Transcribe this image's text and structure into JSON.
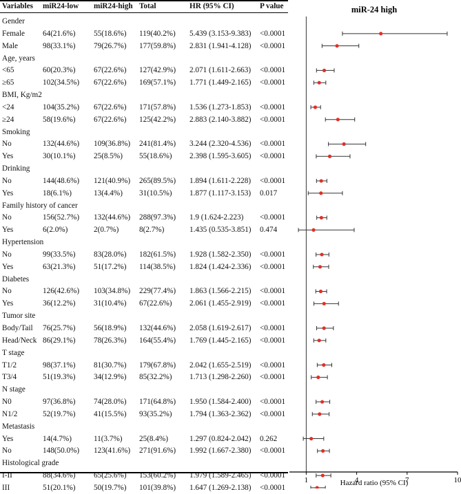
{
  "table": {
    "headers": [
      "Variables",
      "miR24-low",
      "miR24-high",
      "Total",
      "HR (95% CI)",
      "P value"
    ],
    "rows": [
      {
        "kind": "group",
        "label": "Gender"
      },
      {
        "kind": "data",
        "label": "Female",
        "low": "64(21.6%)",
        "high": "55(18.6%)",
        "total": "119(40.2%)",
        "hr_text": "5.439 (3.153-9.383)",
        "p": "<0.0001"
      },
      {
        "kind": "data",
        "label": "Male",
        "low": "98(33.1%)",
        "high": "79(26.7%)",
        "total": "177(59.8%)",
        "hr_text": "2.831 (1.941-4.128)",
        "p": "<0.0001"
      },
      {
        "kind": "group",
        "label": "Age, years"
      },
      {
        "kind": "data",
        "label": "<65",
        "low": "60(20.3%)",
        "high": "67(22.6%)",
        "total": "127(42.9%)",
        "hr_text": "2.071 (1.611-2.663)",
        "p": "<0.0001"
      },
      {
        "kind": "data",
        "label": "≥65",
        "low": "102(34.5%)",
        "high": "67(22.6%)",
        "total": "169(57.1%)",
        "hr_text": "1.771 (1.449-2.165)",
        "p": "<0.0001"
      },
      {
        "kind": "group",
        "label": "BMI, Kg/m2"
      },
      {
        "kind": "data",
        "label": "<24",
        "low": "104(35.2%)",
        "high": "67(22.6%)",
        "total": "171(57.8%)",
        "hr_text": "1.536 (1.273-1.853)",
        "p": "<0.0001"
      },
      {
        "kind": "data",
        "label": "≥24",
        "low": "58(19.6%)",
        "high": "67(22.6%)",
        "total": "125(42.2%)",
        "hr_text": "2.883 (2.140-3.882)",
        "p": "<0.0001"
      },
      {
        "kind": "group",
        "label": "Smoking"
      },
      {
        "kind": "data",
        "label": "No",
        "low": "132(44.6%)",
        "high": "109(36.8%)",
        "total": "241(81.4%)",
        "hr_text": "3.244 (2.320-4.536)",
        "p": "<0.0001"
      },
      {
        "kind": "data",
        "label": "Yes",
        "low": "30(10.1%)",
        "high": "25(8.5%)",
        "total": "55(18.6%)",
        "hr_text": "2.398 (1.595-3.605)",
        "p": "<0.0001"
      },
      {
        "kind": "group",
        "label": "Drinking"
      },
      {
        "kind": "data",
        "label": "No",
        "low": "144(48.6%)",
        "high": "121(40.9%)",
        "total": "265(89.5%)",
        "hr_text": "1.894 (1.611-2.228)",
        "p": "<0.0001"
      },
      {
        "kind": "data",
        "label": "Yes",
        "low": "18(6.1%)",
        "high": "13(4.4%)",
        "total": "31(10.5%)",
        "hr_text": "1.877 (1.117-3.153)",
        "p": "0.017"
      },
      {
        "kind": "group",
        "label": "Family history of cancer"
      },
      {
        "kind": "data",
        "label": "No",
        "low": "156(52.7%)",
        "high": "132(44.6%)",
        "total": "288(97.3%)",
        "hr_text": "1.9 (1.624-2.223)",
        "p": "<0.0001"
      },
      {
        "kind": "data",
        "label": "Yes",
        "low": "6(2.0%)",
        "high": "2(0.7%)",
        "total": "8(2.7%)",
        "hr_text": "1.435 (0.535-3.851)",
        "p": "0.474"
      },
      {
        "kind": "group",
        "label": "Hypertension"
      },
      {
        "kind": "data",
        "label": "No",
        "low": "99(33.5%)",
        "high": "83(28.0%)",
        "total": "182(61.5%)",
        "hr_text": "1.928 (1.582-2.350)",
        "p": "<0.0001"
      },
      {
        "kind": "data",
        "label": "Yes",
        "low": "63(21.3%)",
        "high": "51(17.2%)",
        "total": "114(38.5%)",
        "hr_text": "1.824 (1.424-2.336)",
        "p": "<0.0001"
      },
      {
        "kind": "group",
        "label": "Diabetes"
      },
      {
        "kind": "data",
        "label": "No",
        "low": "126(42.6%)",
        "high": "103(34.8%)",
        "total": "229(77.4%)",
        "hr_text": "1.863 (1.566-2.215)",
        "p": "<0.0001"
      },
      {
        "kind": "data",
        "label": "Yes",
        "low": "36(12.2%)",
        "high": "31(10.4%)",
        "total": "67(22.6%)",
        "hr_text": "2.061 (1.455-2.919)",
        "p": "<0.0001"
      },
      {
        "kind": "group",
        "label": "Tumor site"
      },
      {
        "kind": "data",
        "label": "Body/Tail",
        "low": "76(25.7%)",
        "high": "56(18.9%)",
        "total": "132(44.6%)",
        "hr_text": "2.058 (1.619-2.617)",
        "p": "<0.0001"
      },
      {
        "kind": "data",
        "label": "Head/Neck",
        "low": "86(29.1%)",
        "high": "78(26.3%)",
        "total": "164(55.4%)",
        "hr_text": "1.769 (1.445-2.165)",
        "p": "<0.0001"
      },
      {
        "kind": "group",
        "label": "T stage"
      },
      {
        "kind": "data",
        "label": "T1/2",
        "low": "98(37.1%)",
        "high": "81(30.7%)",
        "total": "179(67.8%)",
        "hr_text": "2.042 (1.655-2.519)",
        "p": "<0.0001"
      },
      {
        "kind": "data",
        "label": "T3/4",
        "low": "51(19.3%)",
        "high": "34(12.9%)",
        "total": "85(32.2%)",
        "hr_text": "1.713 (1.298-2.260)",
        "p": "<0.0001"
      },
      {
        "kind": "group",
        "label": "N stage"
      },
      {
        "kind": "data",
        "label": "N0",
        "low": "97(36.8%)",
        "high": "74(28.0%)",
        "total": "171(64.8%)",
        "hr_text": "1.950 (1.584-2.400)",
        "p": "<0.0001"
      },
      {
        "kind": "data",
        "label": "N1/2",
        "low": "52(19.7%)",
        "high": "41(15.5%)",
        "total": "93(35.2%)",
        "hr_text": "1.794 (1.363-2.362)",
        "p": "<0.0001"
      },
      {
        "kind": "group",
        "label": "Metastasis"
      },
      {
        "kind": "data",
        "label": "Yes",
        "low": "14(4.7%)",
        "high": "11(3.7%)",
        "total": "25(8.4%)",
        "hr_text": "1.297 (0.824-2.042)",
        "p": "0.262"
      },
      {
        "kind": "data",
        "label": "No",
        "low": "148(50.0%)",
        "high": "123(41.6%)",
        "total": "271(91.6%)",
        "hr_text": "1.992 (1.667-2.380)",
        "p": "<0.0001"
      },
      {
        "kind": "group",
        "label": "Histological grade"
      },
      {
        "kind": "data",
        "label": "I-II",
        "low": "88(34.6%)",
        "high": "65(25.6%)",
        "total": "153(60.2%)",
        "hr_text": "1.979 (1.589-2.465)",
        "p": "<0.0001"
      },
      {
        "kind": "data",
        "label": "III",
        "low": "51(20.1%)",
        "high": "50(19.7%)",
        "total": "101(39.8%)",
        "hr_text": "1.647 (1.269-2.138)",
        "p": "<0.0001"
      }
    ]
  },
  "chart_data": {
    "type": "scatter",
    "subtype": "forest",
    "title": "miR-24 high",
    "xlabel": "Hazard ratio (95% CI)",
    "ylabel": "",
    "xlim": [
      0,
      10
    ],
    "xticks": [
      1,
      4,
      7,
      10
    ],
    "reference_line": 1,
    "point_color": "#e0302a",
    "series": [
      {
        "name": "Female",
        "hr": 5.439,
        "lo": 3.153,
        "hi": 9.383
      },
      {
        "name": "Male",
        "hr": 2.831,
        "lo": 1.941,
        "hi": 4.128
      },
      {
        "name": "<65",
        "hr": 2.071,
        "lo": 1.611,
        "hi": 2.663
      },
      {
        "name": "≥65",
        "hr": 1.771,
        "lo": 1.449,
        "hi": 2.165
      },
      {
        "name": "<24",
        "hr": 1.536,
        "lo": 1.273,
        "hi": 1.853
      },
      {
        "name": "≥24",
        "hr": 2.883,
        "lo": 2.14,
        "hi": 3.882
      },
      {
        "name": "Smoking No",
        "hr": 3.244,
        "lo": 2.32,
        "hi": 4.536
      },
      {
        "name": "Smoking Yes",
        "hr": 2.398,
        "lo": 1.595,
        "hi": 3.605
      },
      {
        "name": "Drinking No",
        "hr": 1.894,
        "lo": 1.611,
        "hi": 2.228
      },
      {
        "name": "Drinking Yes",
        "hr": 1.877,
        "lo": 1.117,
        "hi": 3.153
      },
      {
        "name": "Family history No",
        "hr": 1.9,
        "lo": 1.624,
        "hi": 2.223
      },
      {
        "name": "Family history Yes",
        "hr": 1.435,
        "lo": 0.535,
        "hi": 3.851
      },
      {
        "name": "Hypertension No",
        "hr": 1.928,
        "lo": 1.582,
        "hi": 2.35
      },
      {
        "name": "Hypertension Yes",
        "hr": 1.824,
        "lo": 1.424,
        "hi": 2.336
      },
      {
        "name": "Diabetes No",
        "hr": 1.863,
        "lo": 1.566,
        "hi": 2.215
      },
      {
        "name": "Diabetes Yes",
        "hr": 2.061,
        "lo": 1.455,
        "hi": 2.919
      },
      {
        "name": "Body/Tail",
        "hr": 2.058,
        "lo": 1.619,
        "hi": 2.617
      },
      {
        "name": "Head/Neck",
        "hr": 1.769,
        "lo": 1.445,
        "hi": 2.165
      },
      {
        "name": "T1/2",
        "hr": 2.042,
        "lo": 1.655,
        "hi": 2.519
      },
      {
        "name": "T3/4",
        "hr": 1.713,
        "lo": 1.298,
        "hi": 2.26
      },
      {
        "name": "N0",
        "hr": 1.95,
        "lo": 1.584,
        "hi": 2.4
      },
      {
        "name": "N1/2",
        "hr": 1.794,
        "lo": 1.363,
        "hi": 2.362
      },
      {
        "name": "Metastasis Yes",
        "hr": 1.297,
        "lo": 0.824,
        "hi": 2.042
      },
      {
        "name": "Metastasis No",
        "hr": 1.992,
        "lo": 1.667,
        "hi": 2.38
      },
      {
        "name": "I-II",
        "hr": 1.979,
        "lo": 1.589,
        "hi": 2.465
      },
      {
        "name": "III",
        "hr": 1.647,
        "lo": 1.269,
        "hi": 2.138
      }
    ]
  }
}
